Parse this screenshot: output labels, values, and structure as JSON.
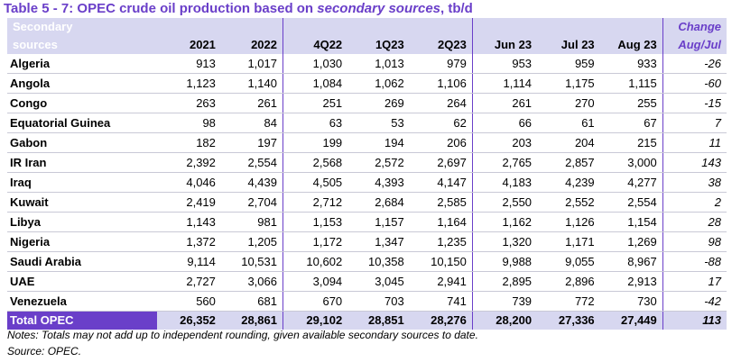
{
  "title": {
    "prefix": "Table 5 - 7: OPEC crude oil production based on ",
    "emphasis": "secondary sources",
    "suffix": ", tb/d"
  },
  "header": {
    "source_line1": "Secondary",
    "source_line2": "sources",
    "change_line1": "Change",
    "change_line2": "Aug/Jul",
    "columns": [
      "2021",
      "2022",
      "4Q22",
      "1Q23",
      "2Q23",
      "Jun 23",
      "Jul 23",
      "Aug 23"
    ]
  },
  "rows": [
    {
      "name": "Algeria",
      "values": [
        "913",
        "1,017",
        "1,030",
        "1,013",
        "979",
        "953",
        "959",
        "933"
      ],
      "change": "-26"
    },
    {
      "name": "Angola",
      "values": [
        "1,123",
        "1,140",
        "1,084",
        "1,062",
        "1,106",
        "1,114",
        "1,175",
        "1,115"
      ],
      "change": "-60"
    },
    {
      "name": "Congo",
      "values": [
        "263",
        "261",
        "251",
        "269",
        "264",
        "261",
        "270",
        "255"
      ],
      "change": "-15"
    },
    {
      "name": "Equatorial Guinea",
      "values": [
        "98",
        "84",
        "63",
        "53",
        "62",
        "66",
        "61",
        "67"
      ],
      "change": "7"
    },
    {
      "name": "Gabon",
      "values": [
        "182",
        "197",
        "199",
        "194",
        "206",
        "203",
        "204",
        "215"
      ],
      "change": "11"
    },
    {
      "name": "IR Iran",
      "values": [
        "2,392",
        "2,554",
        "2,568",
        "2,572",
        "2,697",
        "2,765",
        "2,857",
        "3,000"
      ],
      "change": "143"
    },
    {
      "name": "Iraq",
      "values": [
        "4,046",
        "4,439",
        "4,505",
        "4,393",
        "4,147",
        "4,183",
        "4,239",
        "4,277"
      ],
      "change": "38"
    },
    {
      "name": "Kuwait",
      "values": [
        "2,419",
        "2,704",
        "2,712",
        "2,684",
        "2,585",
        "2,550",
        "2,552",
        "2,554"
      ],
      "change": "2"
    },
    {
      "name": "Libya",
      "values": [
        "1,143",
        "981",
        "1,153",
        "1,157",
        "1,164",
        "1,162",
        "1,126",
        "1,154"
      ],
      "change": "28"
    },
    {
      "name": "Nigeria",
      "values": [
        "1,372",
        "1,205",
        "1,172",
        "1,347",
        "1,235",
        "1,320",
        "1,171",
        "1,269"
      ],
      "change": "98"
    },
    {
      "name": "Saudi Arabia",
      "values": [
        "9,114",
        "10,531",
        "10,602",
        "10,358",
        "10,150",
        "9,988",
        "9,055",
        "8,967"
      ],
      "change": "-88"
    },
    {
      "name": "UAE",
      "values": [
        "2,727",
        "3,066",
        "3,094",
        "3,045",
        "2,941",
        "2,895",
        "2,896",
        "2,913"
      ],
      "change": "17"
    },
    {
      "name": "Venezuela",
      "values": [
        "560",
        "681",
        "670",
        "703",
        "741",
        "739",
        "772",
        "730"
      ],
      "change": "-42"
    }
  ],
  "total": {
    "name": "Total  OPEC",
    "values": [
      "26,352",
      "28,861",
      "29,102",
      "28,851",
      "28,276",
      "28,200",
      "27,336",
      "27,449"
    ],
    "change": "113"
  },
  "notes": {
    "line1": "Notes: Totals may not add up to independent rounding, given available secondary sources to date.",
    "line2": "Source: OPEC."
  },
  "colors": {
    "accent": "#6a3fc9",
    "header_bg": "#d7d7f0"
  }
}
